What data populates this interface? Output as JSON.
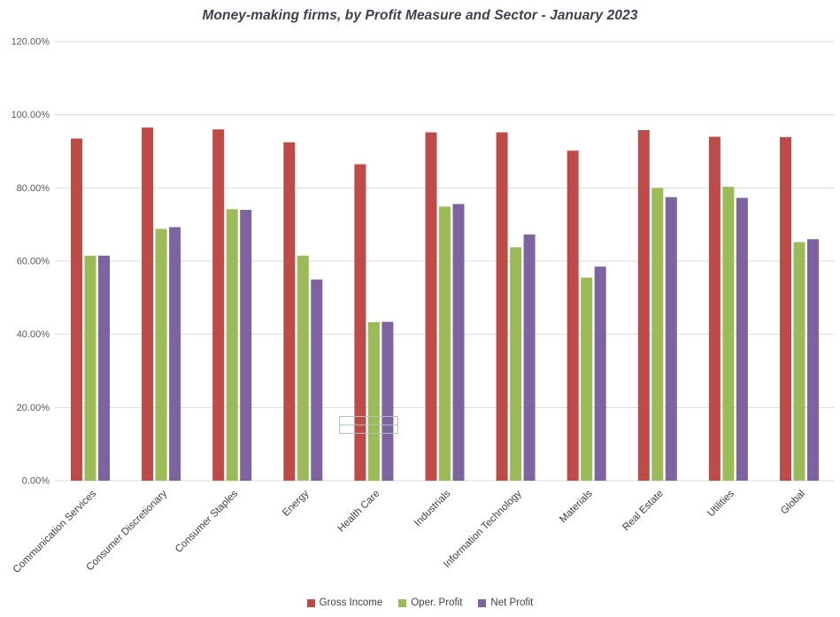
{
  "chart_data": {
    "type": "bar",
    "title": "Money-making firms, by Profit Measure and Sector - January 2023",
    "categories": [
      "Communication Services",
      "Consumer Discretionary",
      "Consumer Staples",
      "Energy",
      "Health Care",
      "Industrials",
      "Information Technology",
      "Materials",
      "Real Estate",
      "Utilities",
      "Global"
    ],
    "series": [
      {
        "name": "Gross Income",
        "color": "#be4b48",
        "values": [
          93.5,
          96.5,
          96.0,
          92.5,
          86.5,
          95.2,
          95.2,
          90.2,
          95.8,
          94.0,
          93.9
        ]
      },
      {
        "name": "Oper. Profit",
        "color": "#9bbb59",
        "values": [
          61.5,
          68.8,
          74.2,
          61.5,
          43.3,
          74.9,
          63.8,
          55.5,
          80.0,
          80.3,
          65.2
        ]
      },
      {
        "name": "Net Profit",
        "color": "#7e63a1",
        "values": [
          61.5,
          69.3,
          74.0,
          55.0,
          43.4,
          75.6,
          67.3,
          58.5,
          77.5,
          77.3,
          66.0
        ]
      }
    ],
    "ylim": [
      0,
      120
    ],
    "ytick_step": 20,
    "ytick_labels": [
      "0.00%",
      "20.00%",
      "40.00%",
      "60.00%",
      "80.00%",
      "100.00%",
      "120.00%"
    ],
    "grid": true,
    "legend_position": "bottom",
    "colors": {
      "gridline": "#d9d9d9",
      "axis_text": "#595959",
      "title": "#3f3f4d",
      "selection_outline": "#a9c5bb"
    }
  }
}
